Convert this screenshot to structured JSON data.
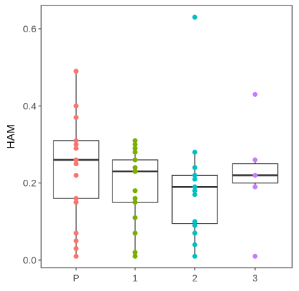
{
  "chart_data": {
    "type": "box",
    "ylabel": "HAM",
    "xlabel": "",
    "title": "",
    "ylim": [
      -0.02,
      0.665
    ],
    "categories": [
      "P",
      "1",
      "2",
      "3"
    ],
    "y_ticks": [
      0.0,
      0.2,
      0.4,
      0.6
    ],
    "y_tick_labels": [
      "0.0",
      "0.2",
      "0.4",
      "0.6"
    ],
    "grid": false,
    "legend": "none",
    "groups": [
      {
        "category": "P",
        "color": "#F8766D",
        "box": {
          "q1": 0.16,
          "median": 0.26,
          "q3": 0.31,
          "whisker_low": 0.01,
          "whisker_high": 0.49
        },
        "points": [
          0.49,
          0.4,
          0.37,
          0.31,
          0.3,
          0.29,
          0.26,
          0.25,
          0.22,
          0.16,
          0.15,
          0.07,
          0.05,
          0.03,
          0.01
        ]
      },
      {
        "category": "1",
        "color": "#7CAE00",
        "box": {
          "q1": 0.15,
          "median": 0.23,
          "q3": 0.26,
          "whisker_low": 0.01,
          "whisker_high": 0.31
        },
        "points": [
          0.31,
          0.3,
          0.29,
          0.28,
          0.26,
          0.24,
          0.23,
          0.18,
          0.16,
          0.15,
          0.11,
          0.07,
          0.02,
          0.01
        ]
      },
      {
        "category": "2",
        "color": "#00BFC4",
        "box": {
          "q1": 0.095,
          "median": 0.19,
          "q3": 0.22,
          "whisker_low": 0.01,
          "whisker_high": 0.28
        },
        "points": [
          0.63,
          0.28,
          0.24,
          0.22,
          0.21,
          0.19,
          0.18,
          0.17,
          0.1,
          0.09,
          0.07,
          0.04,
          0.01
        ]
      },
      {
        "category": "3",
        "color": "#C77CFF",
        "box": {
          "q1": 0.2,
          "median": 0.22,
          "q3": 0.25,
          "whisker_low": 0.19,
          "whisker_high": 0.26
        },
        "points": [
          0.43,
          0.26,
          0.22,
          0.19,
          0.01
        ]
      }
    ]
  }
}
